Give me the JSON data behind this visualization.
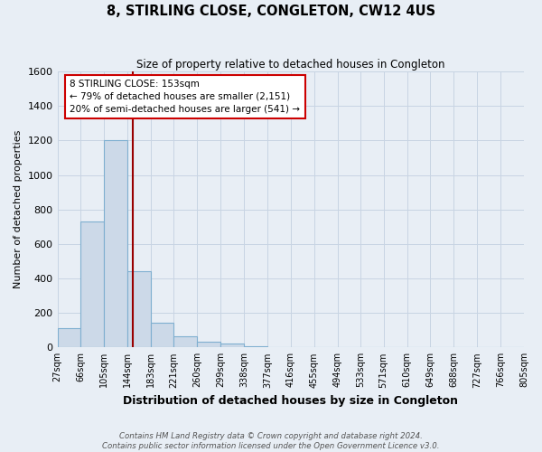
{
  "title": "8, STIRLING CLOSE, CONGLETON, CW12 4US",
  "subtitle": "Size of property relative to detached houses in Congleton",
  "xlabel": "Distribution of detached houses by size in Congleton",
  "ylabel": "Number of detached properties",
  "footer_line1": "Contains HM Land Registry data © Crown copyright and database right 2024.",
  "footer_line2": "Contains public sector information licensed under the Open Government Licence v3.0.",
  "bin_edges": [
    27,
    66,
    105,
    144,
    183,
    221,
    260,
    299,
    338,
    377,
    416,
    455,
    494,
    533,
    571,
    610,
    649,
    688,
    727,
    766,
    805
  ],
  "bin_labels": [
    "27sqm",
    "66sqm",
    "105sqm",
    "144sqm",
    "183sqm",
    "221sqm",
    "260sqm",
    "299sqm",
    "338sqm",
    "377sqm",
    "416sqm",
    "455sqm",
    "494sqm",
    "533sqm",
    "571sqm",
    "610sqm",
    "649sqm",
    "688sqm",
    "727sqm",
    "766sqm",
    "805sqm"
  ],
  "counts": [
    110,
    730,
    1200,
    440,
    145,
    65,
    35,
    20,
    5,
    0,
    0,
    0,
    0,
    0,
    0,
    0,
    0,
    0,
    0,
    0
  ],
  "bar_facecolor": "#ccd9e8",
  "bar_edgecolor": "#7fafd0",
  "grid_color": "#c8d4e3",
  "background_color": "#e8eef5",
  "vline_x": 153,
  "vline_color": "#990000",
  "annotation_line1": "8 STIRLING CLOSE: 153sqm",
  "annotation_line2": "← 79% of detached houses are smaller (2,151)",
  "annotation_line3": "20% of semi-detached houses are larger (541) →",
  "annotation_box_edgecolor": "#cc0000",
  "annotation_box_facecolor": "#ffffff",
  "ylim": [
    0,
    1600
  ],
  "yticks": [
    0,
    200,
    400,
    600,
    800,
    1000,
    1200,
    1400,
    1600
  ]
}
